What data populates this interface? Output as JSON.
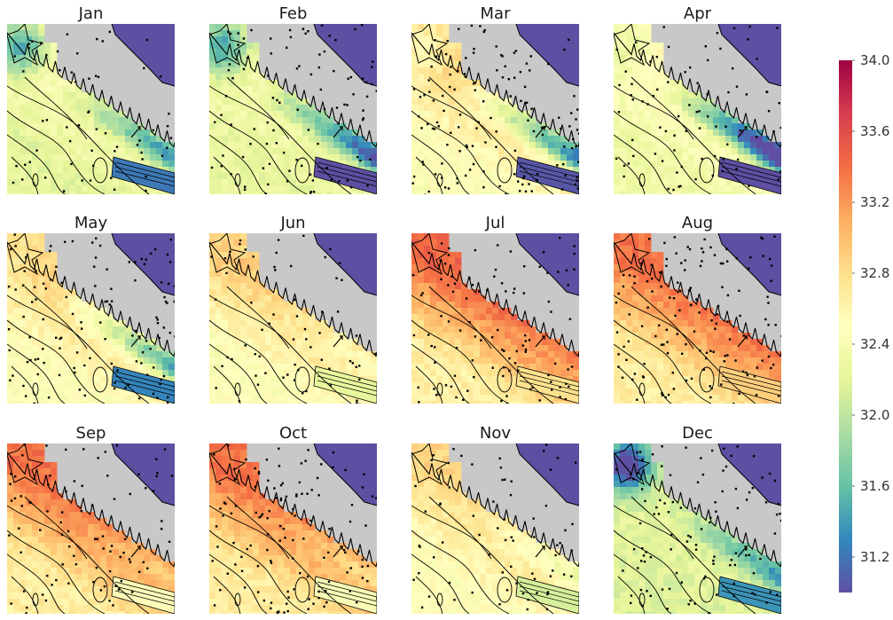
{
  "chart_data": {
    "type": "heatmap",
    "title": "",
    "panel_titles": [
      "Jan",
      "Feb",
      "Mar",
      "Apr",
      "May",
      "Jun",
      "Jul",
      "Aug",
      "Sep",
      "Oct",
      "Nov",
      "Dec"
    ],
    "layout": "3 rows x 4 columns of map panels",
    "colormap": "Spectral_r",
    "colorbar": {
      "ticks": [
        "31.2",
        "31.6",
        "32.0",
        "32.4",
        "32.8",
        "33.2",
        "33.6",
        "34.0"
      ],
      "range": [
        31.0,
        34.0
      ]
    },
    "land_color": "#c8c8c8",
    "panels": [
      {
        "month": "Jan",
        "base": 32.3,
        "offshore_grad": 0.3,
        "nearshore_fresh": 0.6,
        "plume": 0.9
      },
      {
        "month": "Feb",
        "base": 32.3,
        "offshore_grad": 0.2,
        "nearshore_fresh": 0.6,
        "plume": 1.1
      },
      {
        "month": "Mar",
        "base": 32.6,
        "offshore_grad": 0.5,
        "nearshore_fresh": 0.2,
        "plume": 1.3
      },
      {
        "month": "Apr",
        "base": 32.4,
        "offshore_grad": 0.3,
        "nearshore_fresh": 0.2,
        "plume": 1.6
      },
      {
        "month": "May",
        "base": 32.6,
        "offshore_grad": 0.5,
        "nearshore_fresh": 0.1,
        "plume": 1.1
      },
      {
        "month": "Jun",
        "base": 32.6,
        "offshore_grad": 0.5,
        "nearshore_fresh": 0.0,
        "plume": 0.3
      },
      {
        "month": "Jul",
        "base": 32.9,
        "offshore_grad": 0.9,
        "nearshore_fresh": 0.0,
        "plume": 0.1
      },
      {
        "month": "Aug",
        "base": 32.9,
        "offshore_grad": 0.8,
        "nearshore_fresh": 0.0,
        "plume": 0.0
      },
      {
        "month": "Sep",
        "base": 32.9,
        "offshore_grad": 0.8,
        "nearshore_fresh": 0.0,
        "plume": 0.3
      },
      {
        "month": "Oct",
        "base": 32.9,
        "offshore_grad": 0.8,
        "nearshore_fresh": 0.0,
        "plume": 0.4
      },
      {
        "month": "Nov",
        "base": 32.6,
        "offshore_grad": 0.4,
        "nearshore_fresh": 0.0,
        "plume": 0.4
      },
      {
        "month": "Dec",
        "base": 32.2,
        "offshore_grad": 0.1,
        "nearshore_fresh": 0.9,
        "plume": 0.7
      }
    ]
  }
}
